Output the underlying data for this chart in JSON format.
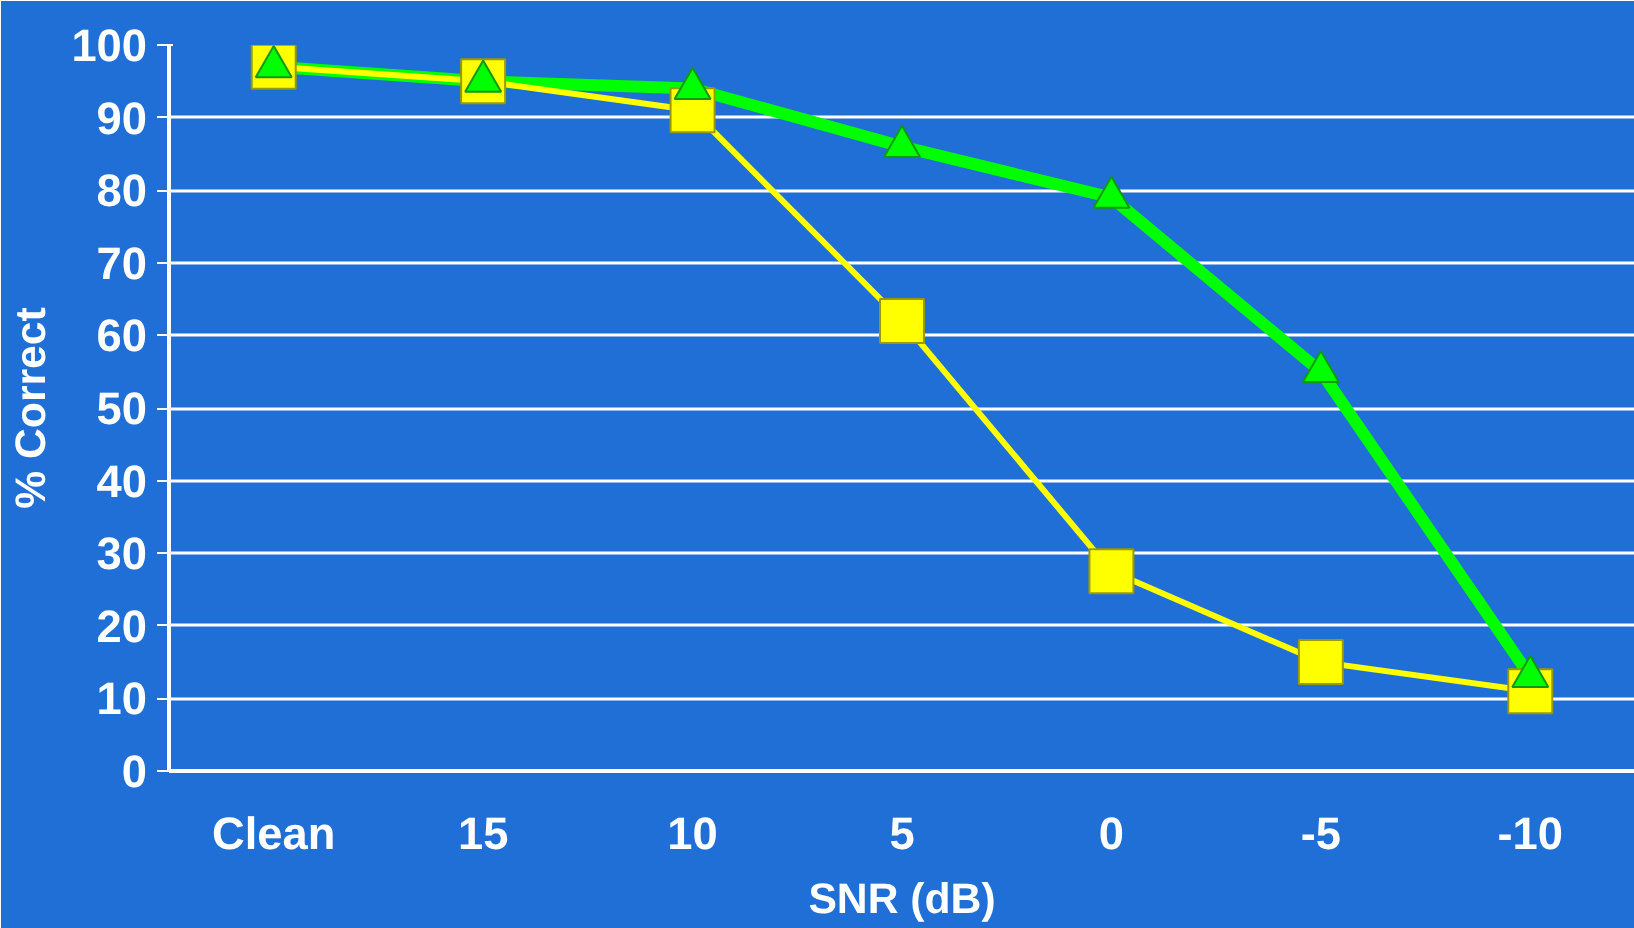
{
  "chart_data": {
    "type": "line",
    "xlabel": "SNR (dB)",
    "ylabel": "% Correct",
    "categories": [
      "Clean",
      "15",
      "10",
      "5",
      "0",
      "-5",
      "-10"
    ],
    "series": [
      {
        "color": "#ffff00",
        "marker": "square",
        "values": [
          97,
          95,
          91,
          62,
          27.5,
          15,
          11
        ]
      },
      {
        "color": "#00ff00",
        "marker": "triangle",
        "values": [
          97,
          95,
          94,
          86,
          79,
          55,
          13
        ]
      }
    ],
    "ylim": [
      0,
      100
    ],
    "yticks": [
      0,
      10,
      20,
      30,
      40,
      50,
      60,
      70,
      80,
      90,
      100
    ],
    "grid": "y",
    "line_style": "solid"
  }
}
